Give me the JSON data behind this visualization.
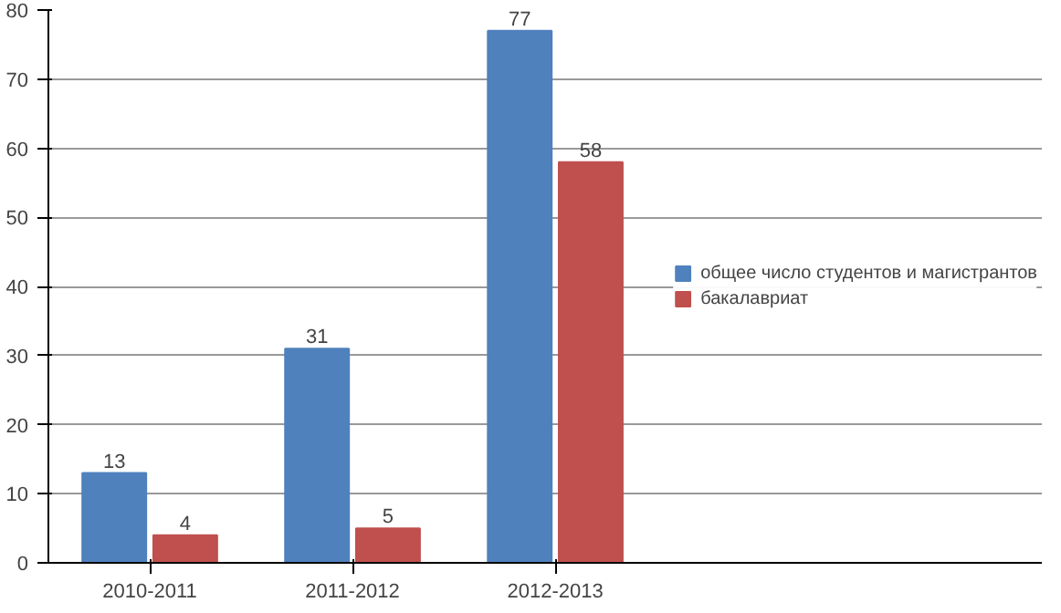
{
  "chart_data": {
    "type": "bar",
    "categories": [
      "2010-2011",
      "2011-2012",
      "2012-2013"
    ],
    "series": [
      {
        "name": "общее число студентов и магистрантов",
        "color": "#4f81bd",
        "values": [
          13,
          31,
          77
        ]
      },
      {
        "name": "бакалавриат",
        "color": "#c0504d",
        "values": [
          4,
          5,
          58
        ]
      }
    ],
    "ylim": [
      0,
      80
    ],
    "yticks": [
      0,
      10,
      20,
      30,
      40,
      50,
      60,
      70,
      80
    ],
    "grid": "y",
    "legend": "right",
    "data_labels": true
  }
}
